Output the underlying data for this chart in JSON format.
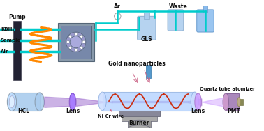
{
  "bg_color": "#ffffff",
  "labels": {
    "KBH4": "KBH₄",
    "Sample": "Sample",
    "Air": "Air",
    "Pump": "Pump",
    "Ar": "Ar",
    "Waste": "Waste",
    "GLS": "GLS",
    "Gold": "Gold nanoparticles",
    "Quartz": "Quartz tube atomizer",
    "HCL": "HCL",
    "Lens1": "Lens",
    "NiCr": "Ni-Cr wire",
    "Burner": "Burner",
    "Lens2": "Lens",
    "PMT": "PMT"
  },
  "colors": {
    "tube_cyan": "#00cccc",
    "pump_dark": "#222233",
    "coil_orange": "#ff8800",
    "reactor_gray": "#8899aa",
    "reactor_face": "#7788aa",
    "reactor_circle": "#9999cc",
    "ar_bottle": "#88bbee",
    "gls_bottle": "#aaccee",
    "hcl_body": "#aaccee",
    "lens1_purple": "#9966ff",
    "lens2_purple": "#cc99ff",
    "beam_purple": "#9966cc",
    "quartz_blue": "#aaccff",
    "coil_red": "#cc2200",
    "burner_gray": "#888899",
    "pmt_purple": "#aa88bb",
    "arrow_pink": "#cc6688",
    "supply_blue": "#5599cc",
    "flowmeter_white": "#ffffff"
  }
}
